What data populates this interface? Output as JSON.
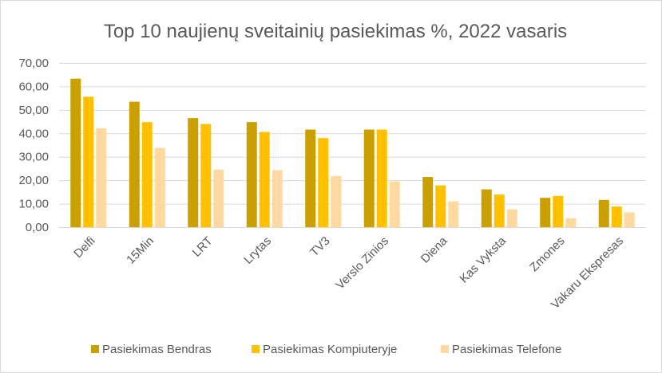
{
  "chart_data": {
    "type": "bar",
    "title": "Top 10 naujienų sveitainių pasiekimas %, 2022 vasaris",
    "xlabel": "",
    "ylabel": "",
    "categories": [
      "Delfi",
      "15Min",
      "LRT",
      "Lrytas",
      "TV3",
      "Verslo Zinios",
      "Diena",
      "Kas Vyksta",
      "Zmones",
      "Vakaru Ekspresas"
    ],
    "series": [
      {
        "name": "Pasiekimas Bendras",
        "color": "#C9A000",
        "values": [
          63.3,
          53.5,
          46.5,
          44.8,
          41.6,
          41.6,
          21.4,
          16.1,
          12.5,
          11.6
        ]
      },
      {
        "name": "Pasiekimas Kompiuteryje",
        "color": "#FFC000",
        "values": [
          55.6,
          44.8,
          44.0,
          40.6,
          38.0,
          41.6,
          17.8,
          13.9,
          13.3,
          8.8
        ]
      },
      {
        "name": "Pasiekimas Telefone",
        "color": "#FFD9A0",
        "values": [
          42.2,
          33.8,
          24.5,
          24.3,
          21.8,
          19.5,
          11.0,
          7.6,
          3.8,
          6.3
        ]
      }
    ],
    "ylim": [
      0,
      70
    ],
    "yticks": [
      0,
      10,
      20,
      30,
      40,
      50,
      60,
      70
    ],
    "ytick_labels": [
      "0,00",
      "10,00",
      "20,00",
      "30,00",
      "40,00",
      "50,00",
      "60,00",
      "70,00"
    ],
    "grid": true,
    "legend_position": "bottom",
    "axis_color": "#d9d9d9",
    "text_color": "#595959"
  }
}
